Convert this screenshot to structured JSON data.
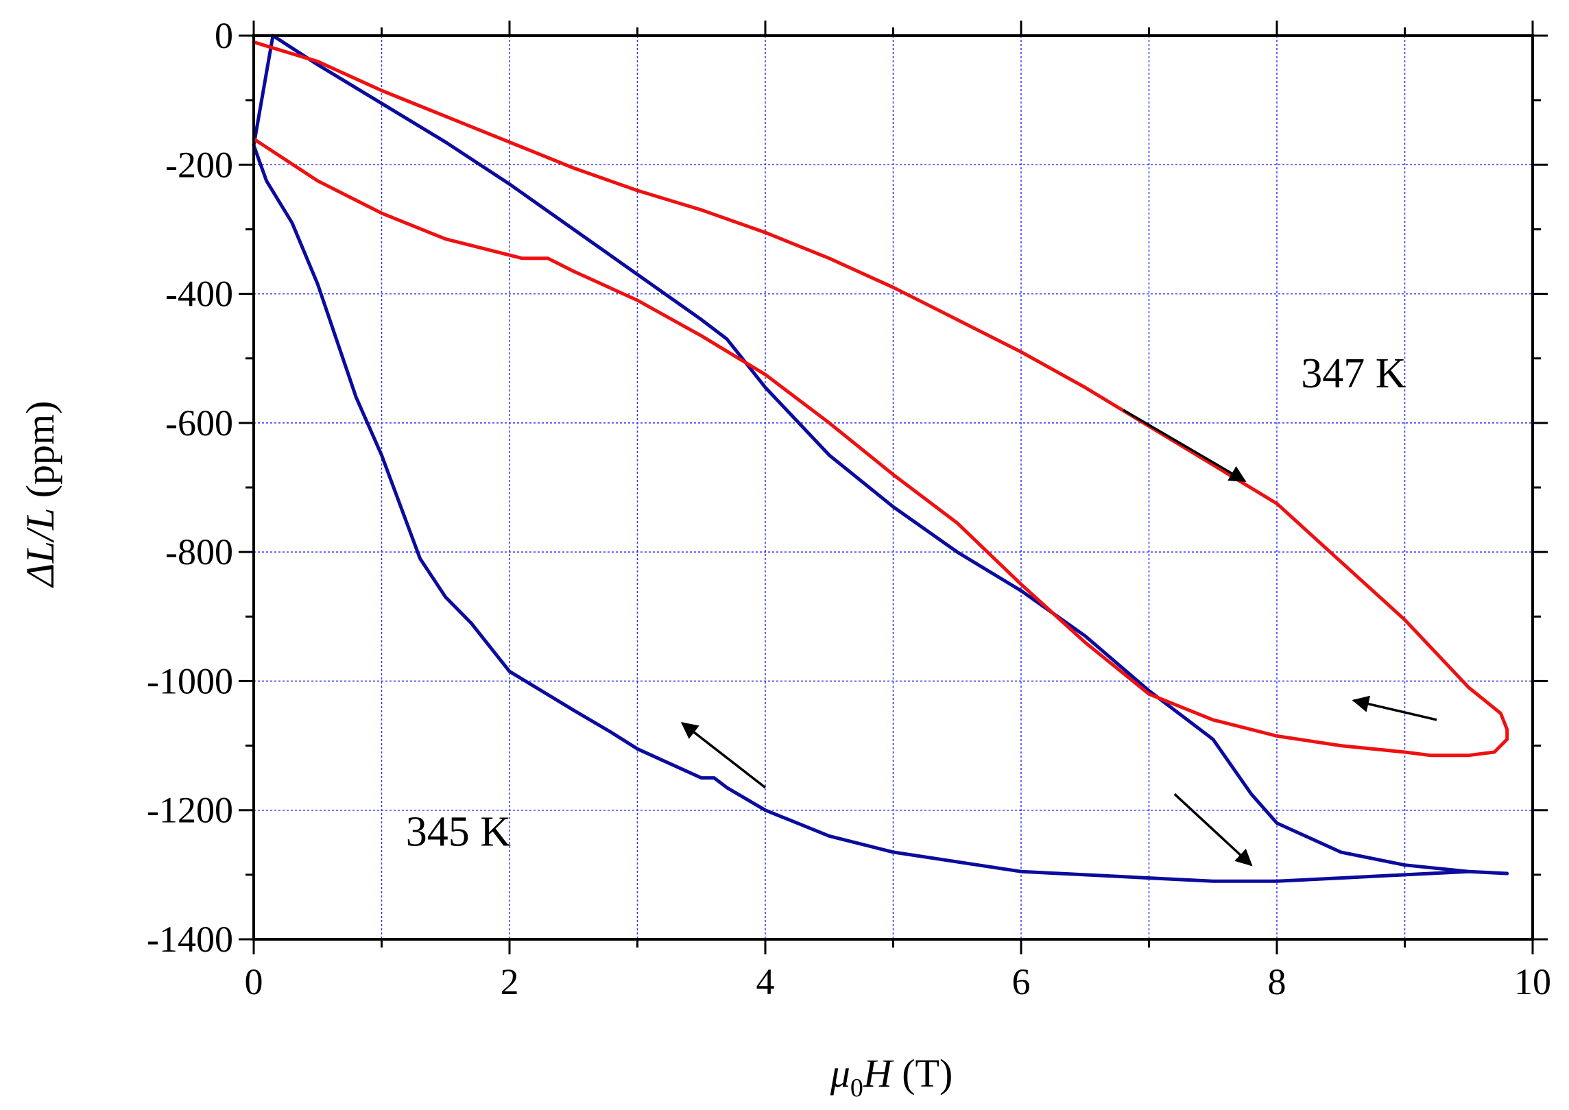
{
  "chart_data": {
    "type": "line",
    "xlabel": {
      "mu": "μ",
      "sub": "0",
      "H": "H",
      "unit": " (T)"
    },
    "ylabel": {
      "delta": "ΔL/L",
      "unit": " (ppm)"
    },
    "xlim": [
      0,
      10
    ],
    "ylim": [
      -1400,
      0
    ],
    "x_ticks": [
      "0",
      "2",
      "4",
      "6",
      "8",
      "10"
    ],
    "y_ticks": [
      "0",
      "-200",
      "-400",
      "-600",
      "-800",
      "-1000",
      "-1200",
      "-1400"
    ],
    "grid": true,
    "series": [
      {
        "name": "345 K",
        "color": "#0b0b9e",
        "x": [
          0.0,
          0.15,
          0.5,
          1.0,
          1.5,
          2.0,
          2.5,
          3.0,
          3.5,
          3.7,
          4.0,
          4.5,
          5.0,
          5.5,
          6.0,
          6.5,
          7.0,
          7.5,
          7.8,
          8.0,
          8.5,
          9.0,
          9.5,
          9.8,
          9.5,
          9.0,
          8.5,
          8.0,
          7.5,
          7.0,
          6.5,
          6.0,
          5.0,
          4.5,
          4.0,
          3.7,
          3.6,
          3.5,
          3.0,
          2.8,
          2.5,
          2.0,
          1.7,
          1.5,
          1.3,
          1.0,
          0.8,
          0.5,
          0.3,
          0.1,
          0.0
        ],
        "y": [
          -170,
          0,
          -45,
          -105,
          -165,
          -230,
          -300,
          -370,
          -440,
          -470,
          -545,
          -650,
          -730,
          -800,
          -860,
          -930,
          -1015,
          -1090,
          -1175,
          -1220,
          -1265,
          -1285,
          -1295,
          -1298,
          -1295,
          -1300,
          -1305,
          -1310,
          -1310,
          -1305,
          -1300,
          -1295,
          -1265,
          -1240,
          -1200,
          -1165,
          -1150,
          -1150,
          -1105,
          -1080,
          -1045,
          -985,
          -910,
          -870,
          -810,
          -650,
          -560,
          -385,
          -290,
          -225,
          -170
        ]
      },
      {
        "name": "347 K",
        "color": "#ee1111",
        "x": [
          0.0,
          0.5,
          1.0,
          1.5,
          2.0,
          2.5,
          3.0,
          3.5,
          4.0,
          4.5,
          5.0,
          5.5,
          6.0,
          6.5,
          7.0,
          7.5,
          8.0,
          8.5,
          9.0,
          9.5,
          9.75,
          9.8,
          9.8,
          9.7,
          9.5,
          9.2,
          9.0,
          8.5,
          8.0,
          7.5,
          7.0,
          6.5,
          6.0,
          5.5,
          5.0,
          4.5,
          4.0,
          3.5,
          3.0,
          2.5,
          2.3,
          2.1,
          1.5,
          1.0,
          0.5,
          0.0
        ],
        "y": [
          -10,
          -40,
          -85,
          -125,
          -165,
          -205,
          -240,
          -270,
          -305,
          -345,
          -390,
          -440,
          -490,
          -545,
          -605,
          -665,
          -725,
          -815,
          -905,
          -1010,
          -1050,
          -1075,
          -1090,
          -1110,
          -1115,
          -1115,
          -1110,
          -1100,
          -1085,
          -1060,
          -1020,
          -940,
          -850,
          -755,
          -680,
          -600,
          -525,
          -465,
          -410,
          -365,
          -345,
          -345,
          -315,
          -275,
          -225,
          -160
        ]
      }
    ],
    "annotations": [
      {
        "text": "347 K",
        "x": 8.6,
        "y": -545
      },
      {
        "text": "345 K",
        "x": 1.6,
        "y": -1255
      }
    ],
    "arrows": [
      {
        "from": [
          6.8,
          -580
        ],
        "to": [
          7.75,
          -690
        ]
      },
      {
        "from": [
          9.25,
          -1060
        ],
        "to": [
          8.6,
          -1030
        ]
      },
      {
        "from": [
          7.2,
          -1175
        ],
        "to": [
          7.8,
          -1285
        ]
      },
      {
        "from": [
          4.0,
          -1165
        ],
        "to": [
          3.35,
          -1065
        ]
      }
    ]
  }
}
